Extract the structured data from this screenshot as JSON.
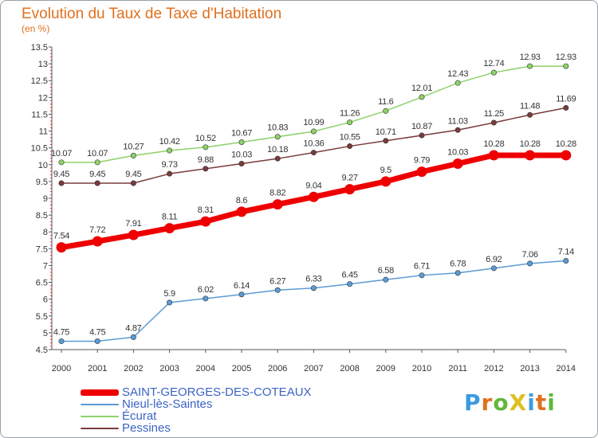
{
  "title": "Evolution du Taux de Taxe d'Habitation",
  "unit": "(en %)",
  "logo": {
    "text": "ProXiti",
    "colors": [
      "#3b9be0",
      "#e0701e",
      "#5fb83a",
      "#e0c020",
      "#3b9be0",
      "#e0701e",
      "#5fb83a"
    ]
  },
  "chart_data": {
    "type": "line",
    "title": "Evolution du Taux de Taxe d'Habitation",
    "ylabel": "(en %)",
    "xlabel": "",
    "x": [
      "2000",
      "2001",
      "2002",
      "2003",
      "2004",
      "2005",
      "2006",
      "2007",
      "2008",
      "2009",
      "2010",
      "2011",
      "2012",
      "2013",
      "2014"
    ],
    "ylim": [
      4.5,
      13.5
    ],
    "yticks": [
      "4.5",
      "5",
      "5.5",
      "6",
      "6.5",
      "7",
      "7.5",
      "8",
      "8.5",
      "9",
      "9.5",
      "10",
      "10.5",
      "11",
      "11.5",
      "12",
      "12.5",
      "13",
      "13.5"
    ],
    "grid": false,
    "legend_position": "bottom-left",
    "series": [
      {
        "name": "SAINT-GEORGES-DES-COTEAUX",
        "color": "#ee0000",
        "values": [
          7.54,
          7.72,
          7.91,
          8.11,
          8.31,
          8.6,
          8.82,
          9.04,
          9.27,
          9.5,
          9.79,
          10.03,
          10.28,
          10.28,
          10.28
        ],
        "labels": [
          "7.54",
          "7.72",
          "7.91",
          "8.11",
          "8.31",
          "8.6",
          "8.82",
          "9.04",
          "9.27",
          "9.5",
          "9.79",
          "10.03",
          "10.28",
          "10.28",
          "10.28"
        ]
      },
      {
        "name": "Nieul-lès-Saintes",
        "color": "#5b9bd5",
        "values": [
          4.75,
          4.75,
          4.87,
          5.9,
          6.02,
          6.14,
          6.27,
          6.33,
          6.45,
          6.58,
          6.71,
          6.78,
          6.92,
          7.06,
          7.14
        ],
        "labels": [
          "4.75",
          "4.75",
          "4.87",
          "5.9",
          "6.02",
          "6.14",
          "6.27",
          "6.33",
          "6.45",
          "6.58",
          "6.71",
          "6.78",
          "6.92",
          "7.06",
          "7.14"
        ]
      },
      {
        "name": "Écurat",
        "color": "#8fd16a",
        "values": [
          10.07,
          10.07,
          10.27,
          10.42,
          10.52,
          10.67,
          10.83,
          10.99,
          11.26,
          11.6,
          12.01,
          12.43,
          12.74,
          12.93,
          12.93
        ],
        "labels": [
          "10.07",
          "10.07",
          "10.27",
          "10.42",
          "10.52",
          "10.67",
          "10.83",
          "10.99",
          "11.26",
          "11.6",
          "12.01",
          "12.43",
          "12.74",
          "12.93",
          "12.93"
        ]
      },
      {
        "name": "Pessines",
        "color": "#7a3b3b",
        "values": [
          9.45,
          9.45,
          9.45,
          9.73,
          9.88,
          10.03,
          10.18,
          10.36,
          10.55,
          10.71,
          10.87,
          11.03,
          11.25,
          11.48,
          11.69
        ],
        "labels": [
          "9.45",
          "9.45",
          "9.45",
          "9.73",
          "9.88",
          "10.03",
          "10.18",
          "10.36",
          "10.55",
          "10.71",
          "10.87",
          "11.03",
          "11.25",
          "11.48",
          "11.69"
        ]
      }
    ]
  }
}
